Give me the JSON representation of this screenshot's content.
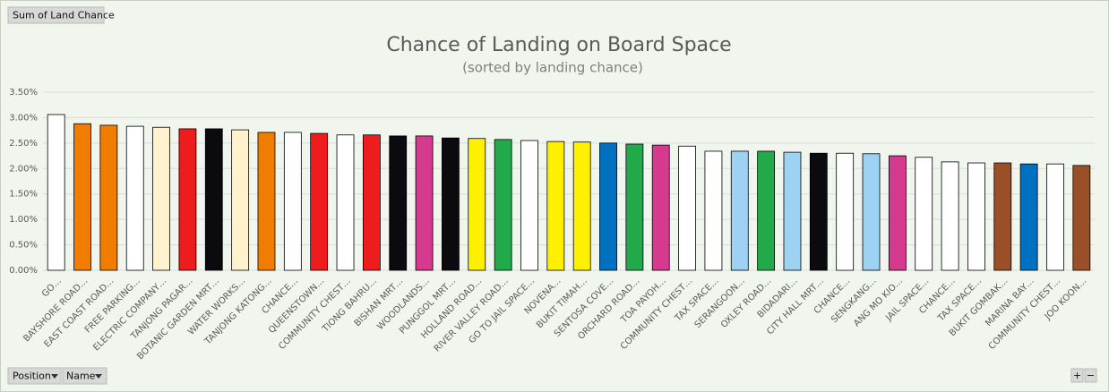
{
  "ui": {
    "field_button": "Sum of Land Chance",
    "axis_buttons": [
      "Position",
      "Name"
    ],
    "zoom_buttons": [
      "+",
      "−"
    ]
  },
  "chart_data": {
    "type": "bar",
    "title": "Chance of Landing on Board Space",
    "subtitle": "(sorted by landing chance)",
    "categories": [
      "GO…",
      "BAYSHORE ROAD…",
      "EAST COAST ROAD…",
      "FREE PARKING…",
      "ELECTRIC COMPANY…",
      "TANJONG PAGAR…",
      "BOTANIC GARDEN MRT…",
      "WATER WORKS…",
      "TANJONG KATONG…",
      "CHANCE…",
      "QUEENSTOWN…",
      "COMMUNITY CHEST…",
      "TIONG BAHRU…",
      "BISHAN MRT…",
      "WOODLANDS…",
      "PUNGGOL MRT…",
      "HOLLAND ROAD…",
      "RIVER VALLEY ROAD…",
      "GO TO JAIL SPACE…",
      "NOVENA…",
      "BUKIT TIMAH…",
      "SENTOSA COVE…",
      "ORCHARD ROAD…",
      "TOA PAYOH…",
      "COMMUNITY CHEST…",
      "TAX SPACE…",
      "SERANGOON…",
      "OXLEY ROAD…",
      "BIDADARI…",
      "CITY HALL MRT…",
      "CHANCE…",
      "SENGKANG…",
      "ANG MO KIO…",
      "JAIL SPACE…",
      "CHANCE…",
      "TAX SPACE…",
      "BUKIT GOMBAK…",
      "MARINA BAY…",
      "COMMUNITY CHEST…",
      "JOO KOON…"
    ],
    "values": [
      3.06,
      2.88,
      2.85,
      2.83,
      2.81,
      2.78,
      2.78,
      2.76,
      2.71,
      2.71,
      2.69,
      2.66,
      2.66,
      2.64,
      2.64,
      2.6,
      2.59,
      2.57,
      2.55,
      2.53,
      2.52,
      2.5,
      2.48,
      2.46,
      2.44,
      2.34,
      2.34,
      2.34,
      2.32,
      2.3,
      2.3,
      2.29,
      2.25,
      2.22,
      2.13,
      2.11,
      2.11,
      2.09,
      2.09,
      2.06
    ],
    "colors": [
      "#ffffff",
      "#f07c00",
      "#f07c00",
      "#ffffff",
      "#fff2cc",
      "#ee1c1c",
      "#0a0a0f",
      "#fff2cc",
      "#f07c00",
      "#ffffff",
      "#ee1c1c",
      "#ffffff",
      "#ee1c1c",
      "#0a0a0f",
      "#d63a8e",
      "#0a0a0f",
      "#ffef00",
      "#22a94a",
      "#ffffff",
      "#ffef00",
      "#ffef00",
      "#0070c0",
      "#22a94a",
      "#d63a8e",
      "#ffffff",
      "#ffffff",
      "#9dd2f2",
      "#22a94a",
      "#9dd2f2",
      "#0a0a0f",
      "#ffffff",
      "#9dd2f2",
      "#d63a8e",
      "#ffffff",
      "#ffffff",
      "#ffffff",
      "#9b4f29",
      "#0070c0",
      "#ffffff",
      "#9b4f29"
    ],
    "ylim": [
      0,
      3.5
    ],
    "yticks": [
      {
        "value": 0,
        "label": "0.00%"
      },
      {
        "value": 0.5,
        "label": "0.50%"
      },
      {
        "value": 1,
        "label": "1.00%"
      },
      {
        "value": 1.5,
        "label": "1.50%"
      },
      {
        "value": 2,
        "label": "2.00%"
      },
      {
        "value": 2.5,
        "label": "2.50%"
      },
      {
        "value": 3,
        "label": "3.00%"
      },
      {
        "value": 3.5,
        "label": "3.50%"
      }
    ],
    "grid": true
  }
}
